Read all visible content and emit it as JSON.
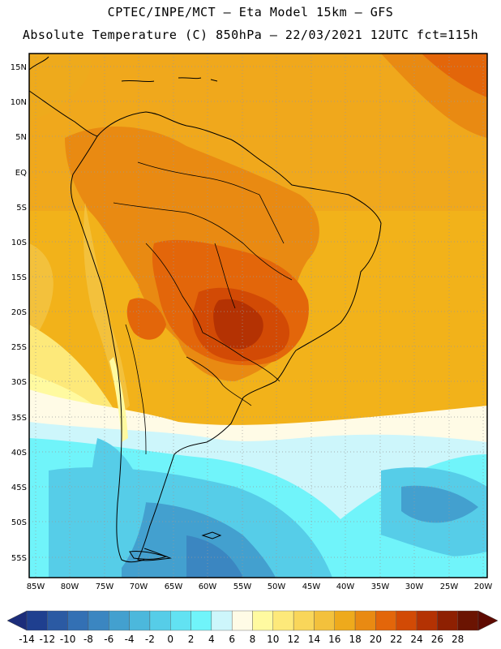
{
  "header": {
    "line1": "CPTEC/INPE/MCT –  Eta Model 15km – GFS",
    "line2": "Absolute Temperature (C) 850hPa – 22/03/2021 12UTC fct=115h"
  },
  "axes": {
    "lat_labels": [
      "15N",
      "10N",
      "5N",
      "EQ",
      "5S",
      "10S",
      "15S",
      "20S",
      "25S",
      "30S",
      "35S",
      "40S",
      "45S",
      "50S",
      "55S"
    ],
    "lon_labels": [
      "85W",
      "80W",
      "75W",
      "70W",
      "65W",
      "60W",
      "55W",
      "50W",
      "45W",
      "40W",
      "35W",
      "30W",
      "25W",
      "20W"
    ]
  },
  "colorbar": {
    "labels": [
      "-14",
      "-12",
      "-10",
      "-8",
      "-6",
      "-4",
      "-2",
      "0",
      "2",
      "4",
      "6",
      "8",
      "10",
      "12",
      "14",
      "16",
      "18",
      "20",
      "22",
      "24",
      "26",
      "28"
    ],
    "colors": [
      "#1f3f8f",
      "#2b5aa3",
      "#3370b4",
      "#3b86c1",
      "#43a0cf",
      "#4cb8dc",
      "#56cde8",
      "#62e2f2",
      "#70f4fa",
      "#cdf6fb",
      "#fffbe6",
      "#fffaa0",
      "#fde97a",
      "#f9d65a",
      "#f3c13c",
      "#eeaa1c",
      "#e98a12",
      "#e3660a",
      "#d24a05",
      "#b43203",
      "#8e2002",
      "#6b1402"
    ],
    "end_low": "#1c2d7a",
    "end_high": "#5e0a01"
  }
}
